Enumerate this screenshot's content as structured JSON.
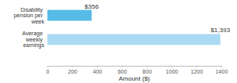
{
  "chart_data": {
    "type": "bar",
    "orientation": "horizontal",
    "categories": [
      "Disability pension per week",
      "Average weekly earnings"
    ],
    "values": [
      356,
      1393
    ],
    "value_labels": [
      "$356",
      "$1,393"
    ],
    "data_labels": true,
    "colors": [
      "#56bbe6",
      "#aadaf3"
    ],
    "xlabel": "Amount ($)",
    "xlim": [
      0,
      1400
    ],
    "xticks": [
      0,
      200,
      400,
      600,
      800,
      1000,
      1200,
      1400
    ],
    "grid": false
  }
}
